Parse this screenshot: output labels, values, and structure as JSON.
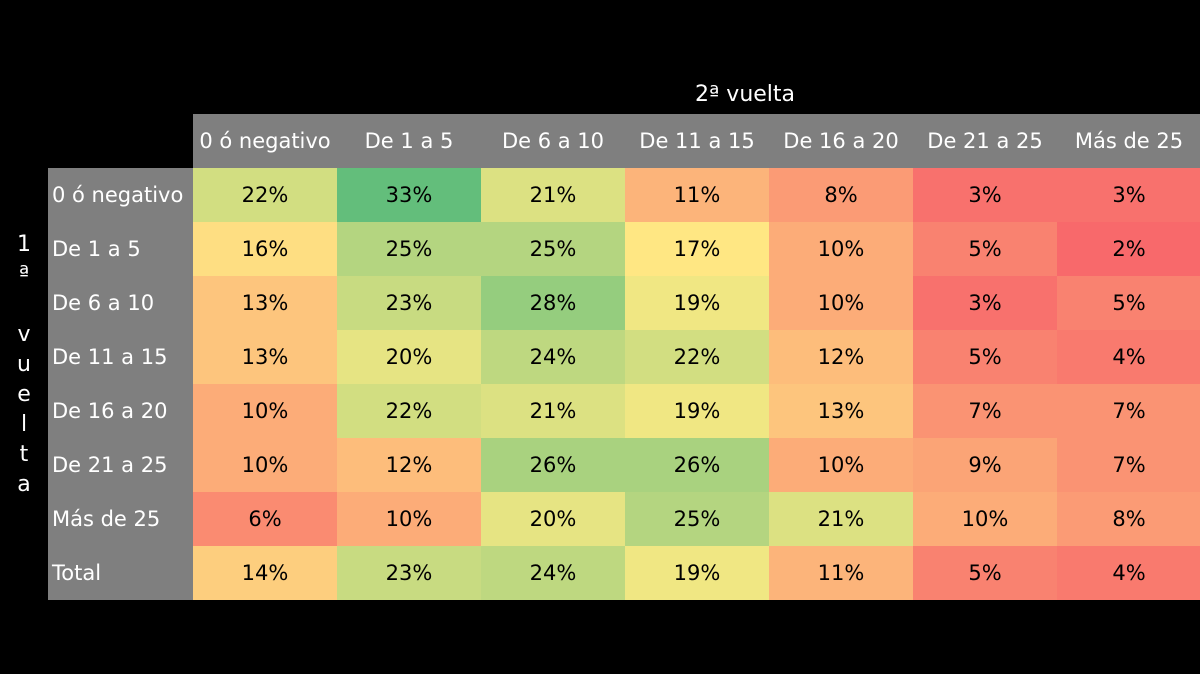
{
  "chart_data": {
    "type": "heatmap",
    "column_axis_label": "2ª vuelta",
    "row_axis_label": "1ª vuelta",
    "columns": [
      "0 ó negativo",
      "De 1 a 5",
      "De 6 a 10",
      "De 11 a 15",
      "De 16 a 20",
      "De 21 a 25",
      "Más de 25"
    ],
    "rows": [
      "0 ó negativo",
      "De 1 a 5",
      "De 6 a 10",
      "De 11 a 15",
      "De 16 a 20",
      "De 21 a 25",
      "Más de 25",
      "Total"
    ],
    "values": [
      [
        22,
        33,
        21,
        11,
        8,
        3,
        3
      ],
      [
        16,
        25,
        25,
        17,
        10,
        5,
        2
      ],
      [
        13,
        23,
        28,
        19,
        10,
        3,
        5
      ],
      [
        13,
        20,
        24,
        22,
        12,
        5,
        4
      ],
      [
        10,
        22,
        21,
        19,
        13,
        7,
        7
      ],
      [
        10,
        12,
        26,
        26,
        10,
        9,
        7
      ],
      [
        6,
        10,
        20,
        25,
        21,
        10,
        8
      ],
      [
        14,
        23,
        24,
        19,
        11,
        5,
        4
      ]
    ],
    "labels": [
      [
        "22%",
        "33%",
        "21%",
        "11%",
        "8%",
        "3%",
        "3%"
      ],
      [
        "16%",
        "25%",
        "25%",
        "17%",
        "10%",
        "5%",
        "2%"
      ],
      [
        "13%",
        "23%",
        "28%",
        "19%",
        "10%",
        "3%",
        "5%"
      ],
      [
        "13%",
        "20%",
        "24%",
        "22%",
        "12%",
        "5%",
        "4%"
      ],
      [
        "10%",
        "22%",
        "21%",
        "19%",
        "13%",
        "7%",
        "7%"
      ],
      [
        "10%",
        "12%",
        "26%",
        "26%",
        "10%",
        "9%",
        "7%"
      ],
      [
        "6%",
        "10%",
        "20%",
        "25%",
        "21%",
        "10%",
        "8%"
      ],
      [
        "14%",
        "23%",
        "24%",
        "19%",
        "11%",
        "5%",
        "4%"
      ]
    ],
    "color_scale": [
      "#f8696b",
      "#ffeb84",
      "#63be7b"
    ],
    "header_color": "#7f7f7f",
    "unit": "%"
  }
}
